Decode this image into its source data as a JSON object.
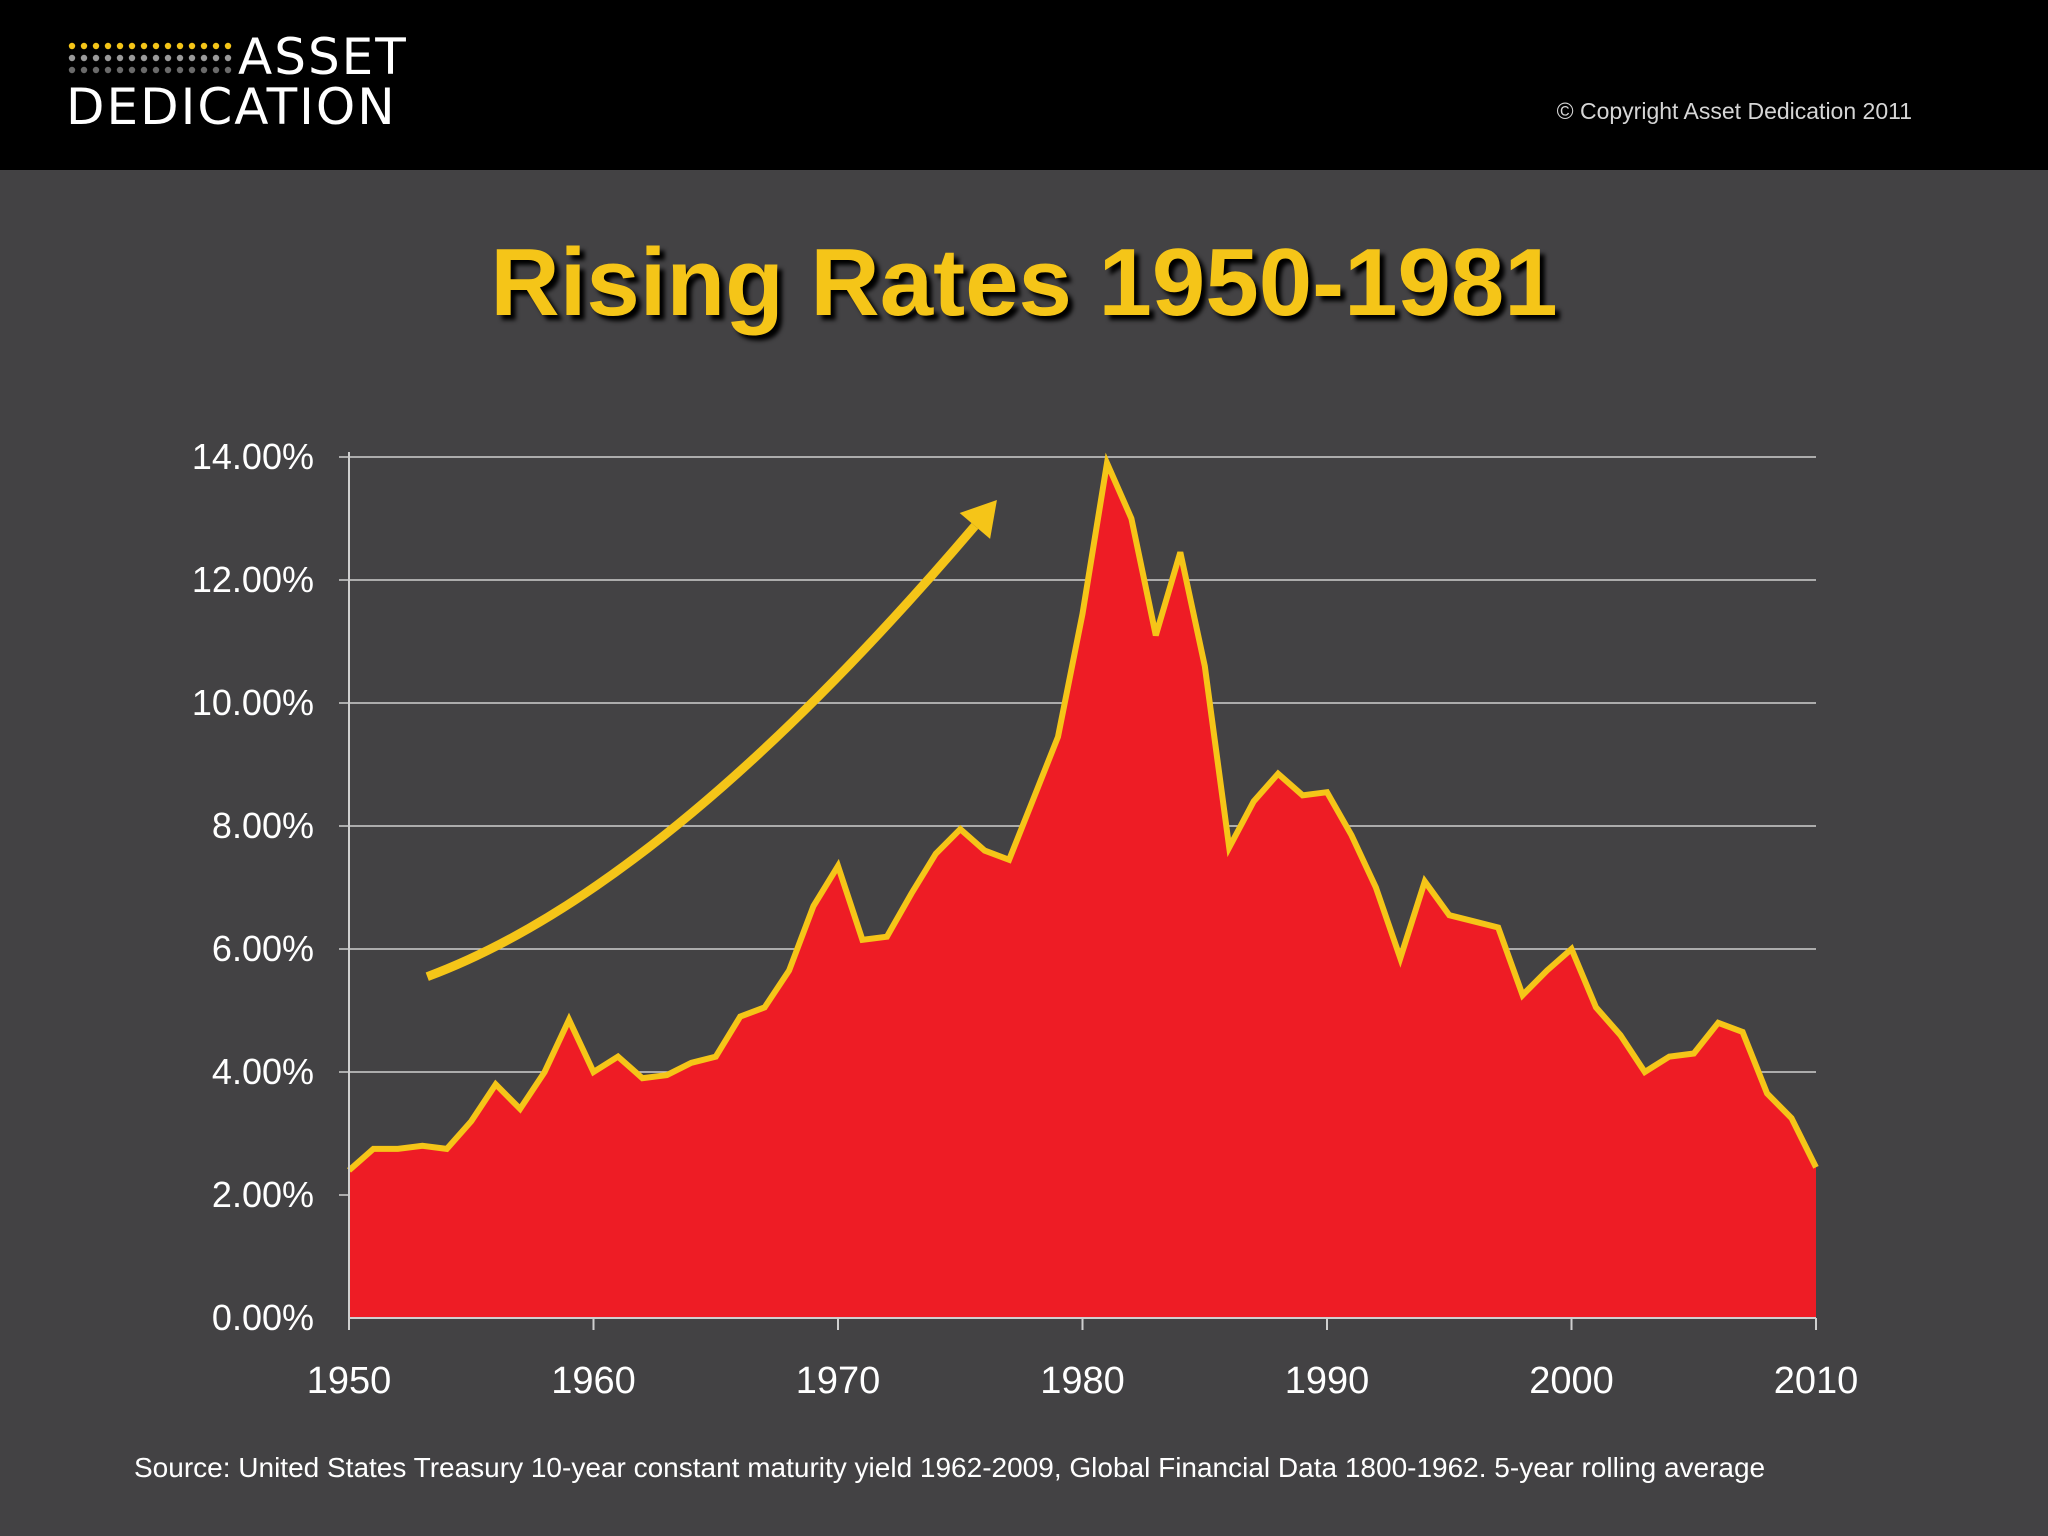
{
  "header": {
    "logo_line1": "ASSET",
    "logo_line2": "DEDICATION",
    "copyright": "© Copyright Asset Dedication 2011"
  },
  "colors": {
    "background": "#434244",
    "header": "#000000",
    "title": "#f5c518",
    "area_fill": "#ee1c25",
    "line": "#f5c518",
    "arrow": "#f5c518",
    "grid": "#cfcfcf",
    "text": "#ffffff"
  },
  "title": "Rising Rates 1950-1981",
  "source_note": "Source: United States Treasury 10-year constant maturity yield 1962-2009, Global Financial Data 1800-1962.  5-year rolling average",
  "chart_data": {
    "type": "area",
    "title": "Rising Rates 1950-1981",
    "xlabel": "",
    "ylabel": "",
    "xlim": [
      1950,
      2010
    ],
    "ylim": [
      0,
      14
    ],
    "grid": true,
    "legend": "none",
    "x_ticks": [
      "1950",
      "1960",
      "1970",
      "1980",
      "1990",
      "2000",
      "2010"
    ],
    "y_ticks": [
      "0.00%",
      "2.00%",
      "4.00%",
      "6.00%",
      "8.00%",
      "10.00%",
      "12.00%",
      "14.00%"
    ],
    "series": [
      {
        "x": [
          1950,
          1951,
          1952,
          1953,
          1954,
          1955,
          1956,
          1957,
          1958,
          1959,
          1960,
          1961,
          1962,
          1963,
          1964,
          1965,
          1966,
          1967,
          1968,
          1969,
          1970,
          1971,
          1972,
          1973,
          1974,
          1975,
          1976,
          1977,
          1978,
          1979,
          1980,
          1981,
          1982,
          1983,
          1984,
          1985,
          1986,
          1987,
          1988,
          1989,
          1990,
          1991,
          1992,
          1993,
          1994,
          1995,
          1996,
          1997,
          1998,
          1999,
          2000,
          2001,
          2002,
          2003,
          2004,
          2005,
          2006,
          2007,
          2008,
          2009,
          2010
        ],
        "values": [
          2.4,
          2.75,
          2.75,
          2.8,
          2.75,
          3.2,
          3.8,
          3.4,
          4.0,
          4.85,
          4.0,
          4.25,
          3.9,
          3.95,
          4.15,
          4.25,
          4.9,
          5.05,
          5.65,
          6.7,
          7.35,
          6.15,
          6.2,
          6.9,
          7.55,
          7.95,
          7.6,
          7.45,
          8.45,
          9.45,
          11.45,
          13.9,
          13.0,
          11.1,
          12.45,
          10.6,
          7.65,
          8.4,
          8.85,
          8.5,
          8.55,
          7.85,
          7.0,
          5.85,
          7.1,
          6.55,
          6.45,
          6.35,
          5.25,
          5.65,
          6.0,
          5.05,
          4.6,
          4.0,
          4.25,
          4.3,
          4.8,
          4.65,
          3.65,
          3.25,
          2.45
        ]
      }
    ],
    "annotation": {
      "type": "curved-arrow",
      "description": "rising trend arrow",
      "points": [
        [
          1953.2,
          5.55
        ],
        [
          1963.0,
          7.0
        ],
        [
          1976.5,
          13.3
        ]
      ]
    }
  }
}
